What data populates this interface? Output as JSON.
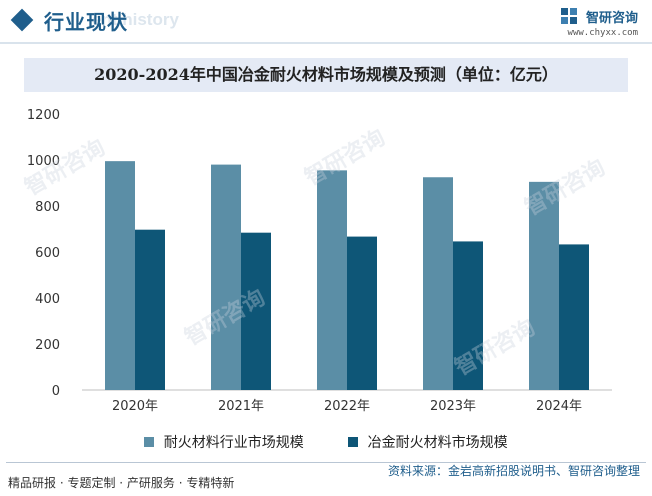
{
  "header": {
    "title": "行业现状",
    "ghost_text": "ent history",
    "brand_name": "智研咨询",
    "brand_url": "www.chyxx.com"
  },
  "chart_data": {
    "type": "bar",
    "title": "2020-2024年中国冶金耐火材料市场规模及预测（单位：亿元）",
    "categories": [
      "2020年",
      "2021年",
      "2022年",
      "2023年",
      "2024年"
    ],
    "series": [
      {
        "name": "耐火材料行业市场规模",
        "values": [
          995,
          980,
          955,
          925,
          905
        ],
        "color": "#5b8ea6"
      },
      {
        "name": "冶金耐火材料市场规模",
        "values": [
          697,
          684,
          667,
          646,
          633
        ],
        "color": "#0e5677"
      }
    ],
    "ylim": [
      0,
      1200
    ],
    "yticks": [
      0,
      200,
      400,
      600,
      800,
      1000,
      1200
    ],
    "grid": false,
    "legend": "bottom"
  },
  "footer": {
    "left": "精品研报 · 专题定制 · 产研服务 · 专精特新",
    "right": "资料来源：金岩高新招股说明书、智研咨询整理"
  },
  "watermark_text": "智研咨询"
}
